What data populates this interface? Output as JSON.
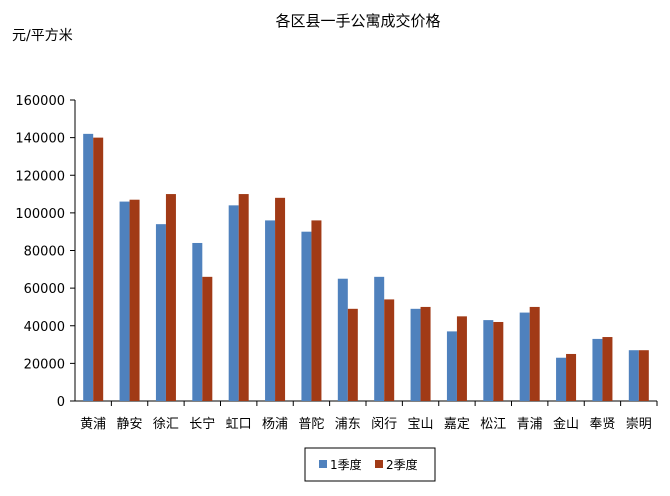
{
  "chart_data": {
    "type": "bar",
    "title": "各区县一手公寓成交价格",
    "ylabel": "元/平方米",
    "xlabel": "",
    "ylim": [
      0,
      160000
    ],
    "ytick_step": 20000,
    "yticks": [
      "0",
      "20000",
      "40000",
      "60000",
      "80000",
      "100000",
      "120000",
      "140000",
      "160000"
    ],
    "grid": false,
    "legend_position": "bottom",
    "categories": [
      "黄浦",
      "静安",
      "徐汇",
      "长宁",
      "虹口",
      "杨浦",
      "普陀",
      "浦东",
      "闵行",
      "宝山",
      "嘉定",
      "松江",
      "青浦",
      "金山",
      "奉贤",
      "崇明"
    ],
    "series": [
      {
        "name": "1季度",
        "color": "#4F81BD",
        "values": [
          142000,
          106000,
          94000,
          84000,
          104000,
          96000,
          90000,
          65000,
          66000,
          49000,
          37000,
          43000,
          47000,
          23000,
          33000,
          27000
        ]
      },
      {
        "name": "2季度",
        "color": "#A13A16",
        "values": [
          140000,
          107000,
          110000,
          66000,
          110000,
          108000,
          96000,
          49000,
          54000,
          50000,
          45000,
          42000,
          50000,
          25000,
          34000,
          27000
        ]
      }
    ]
  }
}
